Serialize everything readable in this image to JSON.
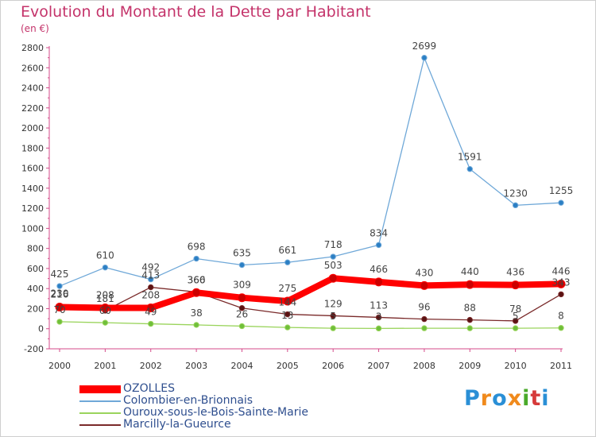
{
  "title": "Evolution du Montant de la Dette par Habitant",
  "subtitle": "(en €)",
  "logo": {
    "letters": [
      "P",
      "r",
      "o",
      "x",
      "i",
      "t",
      "i"
    ],
    "colors": [
      "#2a8fd6",
      "#f08a1c",
      "#2a8fd6",
      "#f08a1c",
      "#4aaa2a",
      "#d63a3a",
      "#2a8fd6"
    ]
  },
  "chart_data": {
    "type": "line",
    "x": [
      "2000",
      "2001",
      "2002",
      "2003",
      "2004",
      "2005",
      "2006",
      "2007",
      "2008",
      "2009",
      "2010",
      "2011"
    ],
    "y_ticks": [
      "-200",
      "0",
      "200",
      "400",
      "600",
      "800",
      "1000",
      "1200",
      "1400",
      "1600",
      "1800",
      "2000",
      "2200",
      "2400",
      "2600",
      "2800"
    ],
    "ylim": [
      -200,
      2800
    ],
    "grid": false,
    "legend_position": "bottom-left",
    "series": [
      {
        "name": "OZOLLES",
        "color": "#ff0000",
        "values": [
          216,
          208,
          208,
          360,
          309,
          275,
          503,
          466,
          430,
          440,
          436,
          446
        ],
        "labels": [
          "216",
          "208",
          "208",
          "360",
          "309",
          "275",
          "503",
          "466",
          "430",
          "440",
          "436",
          "446"
        ]
      },
      {
        "name": "Colombier-en-Brionnais",
        "color": "#6fa8d8",
        "values": [
          425,
          610,
          492,
          698,
          635,
          661,
          718,
          834,
          2699,
          1591,
          1230,
          1255
        ],
        "labels": [
          "425",
          "610",
          "492",
          "698",
          "635",
          "661",
          "718",
          "834",
          "2699",
          "1591",
          "1230",
          "1255"
        ]
      },
      {
        "name": "Ouroux-sous-le-Bois-Sainte-Marie",
        "color": "#9ad45c",
        "values": [
          70,
          60,
          49,
          38,
          26,
          13,
          5,
          3,
          5,
          5,
          5,
          8
        ],
        "labels": [
          "70",
          "60",
          "49",
          "38",
          "26",
          "13",
          "5",
          "3",
          "",
          "",
          "5",
          "8"
        ]
      },
      {
        "name": "Marcilly-la-Gueurce",
        "color": "#7a2a2a",
        "values": [
          230,
          181,
          413,
          366,
          206,
          144,
          129,
          113,
          96,
          88,
          78,
          343
        ],
        "labels": [
          "230",
          "181",
          "413",
          "366",
          "",
          "144",
          "129",
          "113",
          "96",
          "88",
          "78",
          "343"
        ]
      }
    ]
  }
}
